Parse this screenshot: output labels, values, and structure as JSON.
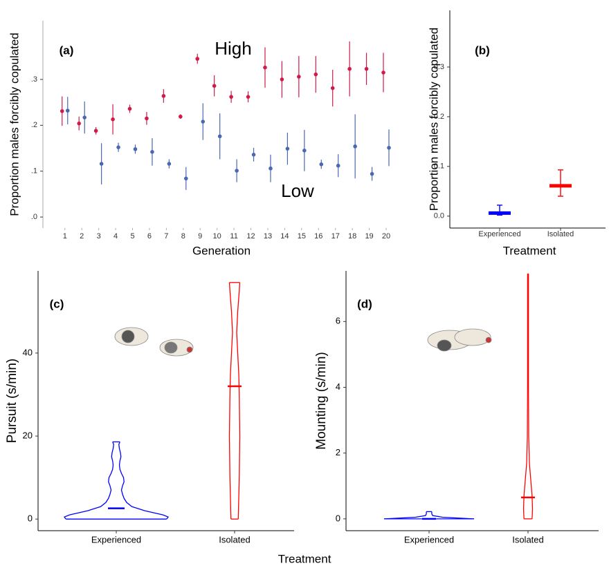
{
  "chart_data": [
    {
      "type": "scatter",
      "panel_label": "(a)",
      "xlabel": "Generation",
      "ylabel": "Proportion males forcibly copulated",
      "annotations": [
        "High",
        "Low"
      ],
      "x": [
        1,
        2,
        3,
        4,
        5,
        6,
        7,
        8,
        9,
        10,
        11,
        12,
        13,
        14,
        15,
        16,
        17,
        18,
        19,
        20
      ],
      "xlim": [
        -0.3,
        20.9
      ],
      "xticks": [
        1,
        2,
        3,
        4,
        5,
        6,
        7,
        8,
        9,
        10,
        11,
        12,
        13,
        14,
        15,
        16,
        17,
        18,
        19,
        20
      ],
      "ylim": [
        -0.024,
        0.428
      ],
      "yticks": [
        {
          "value": 0,
          "label": ".0"
        },
        {
          "value": 0.1,
          "label": ".1"
        },
        {
          "value": 0.2,
          "label": ".2"
        },
        {
          "value": 0.3,
          "label": ".3"
        }
      ],
      "series": [
        {
          "name": "High",
          "color": "#d11a49",
          "values": [
            0.231,
            0.204,
            0.188,
            0.213,
            0.236,
            0.215,
            0.264,
            0.219,
            0.345,
            0.286,
            0.262,
            0.262,
            0.326,
            0.3,
            0.306,
            0.311,
            0.281,
            0.323,
            0.323,
            0.315
          ],
          "errors": [
            0.032,
            0.015,
            0.008,
            0.033,
            0.009,
            0.014,
            0.015,
            0.005,
            0.011,
            0.023,
            0.013,
            0.012,
            0.044,
            0.04,
            0.045,
            0.04,
            0.04,
            0.06,
            0.035,
            0.043
          ]
        },
        {
          "name": "Low",
          "color": "#4a68b0",
          "values": [
            0.232,
            0.217,
            0.116,
            0.152,
            0.148,
            0.142,
            0.116,
            0.084,
            0.208,
            0.176,
            0.101,
            0.136,
            0.106,
            0.149,
            0.145,
            0.115,
            0.112,
            0.154,
            0.094,
            0.151
          ],
          "errors": [
            0.03,
            0.035,
            0.045,
            0.01,
            0.01,
            0.03,
            0.01,
            0.025,
            0.04,
            0.05,
            0.025,
            0.015,
            0.03,
            0.035,
            0.045,
            0.01,
            0.025,
            0.07,
            0.015,
            0.04
          ]
        }
      ]
    },
    {
      "type": "errorbar",
      "panel_label": "(b)",
      "xlabel": "Treatment",
      "ylabel": "Proportion males forcibly copulated",
      "categories": [
        "Experienced",
        "Isolated"
      ],
      "colors": [
        "#0000ff",
        "#ff0000"
      ],
      "values": [
        0.006,
        0.061
      ],
      "lower": [
        0.002,
        0.04
      ],
      "upper": [
        0.022,
        0.093
      ],
      "ylim": [
        -0.024,
        0.414
      ],
      "yticks": [
        {
          "value": 0,
          "label": "0.0"
        },
        0.1,
        0.2,
        0.3
      ]
    },
    {
      "type": "violin",
      "panel_label": "(c)",
      "xlabel": "Treatment",
      "ylabel": "Pursuit (s/min)",
      "categories": [
        "Experienced",
        "Isolated"
      ],
      "ylim": [
        -2.8,
        59.8
      ],
      "yticks": [
        0,
        20,
        40
      ],
      "violins": [
        {
          "color": "#0000ff",
          "median": 2.6,
          "y": [
            0,
            0.5,
            1,
            2,
            3,
            4,
            5,
            6,
            7,
            8,
            9,
            10,
            11,
            12,
            13,
            14,
            15,
            16,
            17,
            18,
            18.6
          ],
          "width": [
            0.97,
            1.0,
            0.9,
            0.55,
            0.3,
            0.2,
            0.15,
            0.12,
            0.1,
            0.12,
            0.15,
            0.14,
            0.1,
            0.07,
            0.06,
            0.07,
            0.09,
            0.08,
            0.06,
            0.05,
            0.07
          ]
        },
        {
          "color": "#ff0000",
          "median": 32,
          "y": [
            0,
            5,
            10,
            20,
            30,
            35,
            40,
            45,
            50,
            55,
            57
          ],
          "width": [
            0.07,
            0.08,
            0.09,
            0.1,
            0.09,
            0.08,
            0.06,
            0.04,
            0.06,
            0.09,
            0.1
          ]
        }
      ]
    },
    {
      "type": "violin",
      "panel_label": "(d)",
      "ylabel": "Mounting (s/min)",
      "categories": [
        "Experienced",
        "Isolated"
      ],
      "ylim": [
        -0.36,
        7.54
      ],
      "yticks": [
        0,
        2,
        4,
        6
      ],
      "violins": [
        {
          "color": "#0000ff",
          "median": 0,
          "y": [
            0,
            0.02,
            0.05,
            0.1,
            0.15,
            0.22
          ],
          "width": [
            1.0,
            0.7,
            0.3,
            0.08,
            0.06,
            0.06
          ]
        },
        {
          "color": "#ff0000",
          "median": 0.65,
          "y": [
            0,
            0.3,
            0.7,
            1.2,
            1.7,
            2.5,
            4,
            6,
            7.45
          ],
          "width": [
            0.09,
            0.1,
            0.09,
            0.06,
            0.03,
            0.015,
            0.01,
            0.01,
            0.01
          ]
        }
      ]
    }
  ]
}
